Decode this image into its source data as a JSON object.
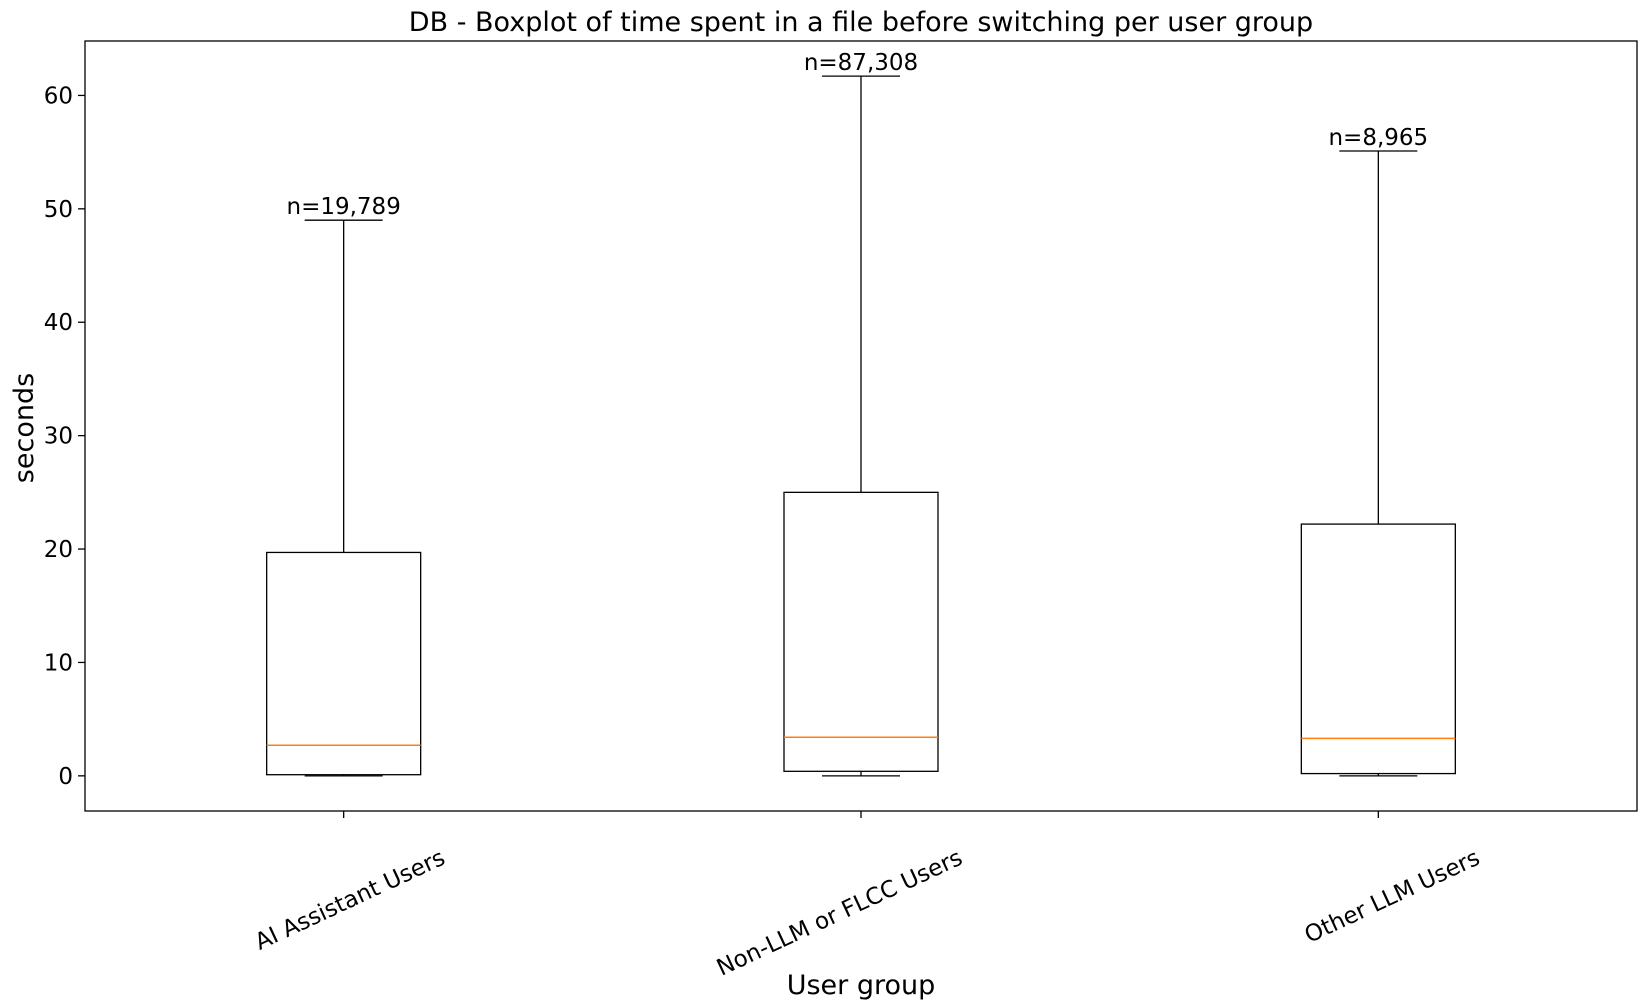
{
  "chart_data": {
    "type": "boxplot",
    "title": "DB - Boxplot of time spent in a file before switching per user group",
    "xlabel": "User group",
    "ylabel": "seconds",
    "ylim": [
      -3.1,
      64.8
    ],
    "yticks": [
      0,
      10,
      20,
      30,
      40,
      50,
      60
    ],
    "median_color": "#ff7f0e",
    "categories": [
      "AI Assistant Users",
      "Non-LLM or FLCC Users",
      "Other LLM Users"
    ],
    "boxes": [
      {
        "name": "AI Assistant Users",
        "whisker_low": 0.0,
        "q1": 0.1,
        "median": 2.7,
        "q3": 19.7,
        "whisker_high": 49.0,
        "n_label": "n=19,789"
      },
      {
        "name": "Non-LLM or FLCC Users",
        "whisker_low": 0.0,
        "q1": 0.4,
        "median": 3.4,
        "q3": 25.0,
        "whisker_high": 61.7,
        "n_label": "n=87,308"
      },
      {
        "name": "Other LLM Users",
        "whisker_low": 0.0,
        "q1": 0.2,
        "median": 3.3,
        "q3": 22.2,
        "whisker_high": 55.1,
        "n_label": "n=8,965"
      }
    ]
  }
}
